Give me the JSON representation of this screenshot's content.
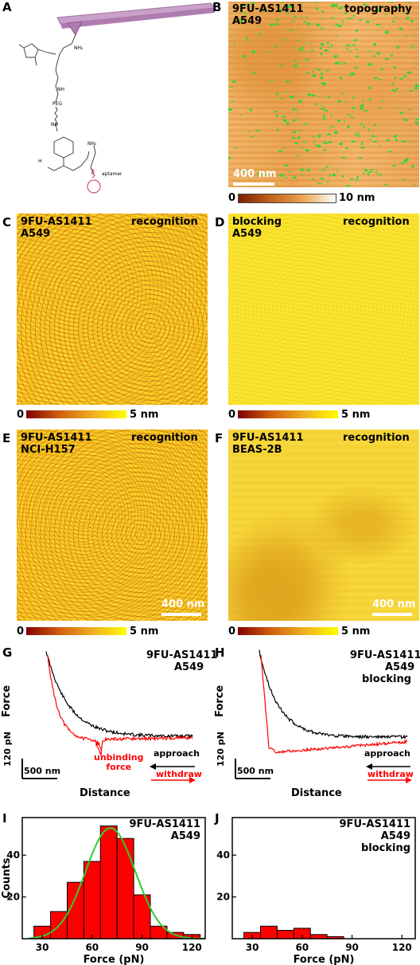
{
  "panelA": {
    "letter": "A",
    "labels": {
      "nh2_top": "NH₂",
      "nh": "NH",
      "peg": "PEG",
      "nh2": "NH",
      "h": "H",
      "nh2_link": "NH₂",
      "aptamer": "aptamer"
    }
  },
  "panelB": {
    "letter": "B",
    "title1": "9FU-AS1411",
    "title2": "A549",
    "mode": "topography",
    "scalebar": "400 nm",
    "cb_min": "0",
    "cb_max": "10 nm"
  },
  "panelC": {
    "letter": "C",
    "title1": "9FU-AS1411",
    "title2": "A549",
    "mode": "recognition",
    "cb_min": "0",
    "cb_max": "5 nm"
  },
  "panelD": {
    "letter": "D",
    "title1": "blocking",
    "title2": "A549",
    "mode": "recognition",
    "cb_min": "0",
    "cb_max": "5 nm"
  },
  "panelE": {
    "letter": "E",
    "title1": "9FU-AS1411",
    "title2": "NCI-H157",
    "mode": "recognition",
    "scalebar": "400 nm",
    "cb_min": "0",
    "cb_max": "5 nm"
  },
  "panelF": {
    "letter": "F",
    "title1": "9FU-AS1411",
    "title2": "BEAS-2B",
    "mode": "recognition",
    "scalebar": "400 nm",
    "cb_min": "0",
    "cb_max": "5 nm"
  },
  "panelG": {
    "letter": "G",
    "title1": "9FU-AS1411",
    "title2": "A549",
    "ylabel": "Force",
    "xlabel": "Distance",
    "force_scale": "120 pN",
    "dist_scale": "500 nm",
    "annotation": "unbinding\nforce",
    "approach": "approach",
    "withdraw": "withdraw"
  },
  "panelH": {
    "letter": "H",
    "title1": "9FU-AS1411",
    "title2": "A549",
    "title3": "blocking",
    "ylabel": "Force",
    "xlabel": "Distance",
    "force_scale": "120 pN",
    "dist_scale": "500 nm",
    "approach": "approach",
    "withdraw": "withdraw"
  },
  "colors": {
    "approach": "#000000",
    "withdraw": "#ff0000",
    "bar": "#ff0000",
    "gauss": "#33cc33"
  },
  "chart_data": [
    {
      "panel": "I",
      "type": "bar",
      "title": "9FU-AS1411\nA549",
      "xlabel": "Force (pN)",
      "ylabel": "Counts",
      "bin_edges": [
        25,
        35,
        45,
        55,
        65,
        75,
        85,
        95,
        105,
        115,
        125
      ],
      "values": [
        6,
        13,
        27,
        37,
        54,
        48,
        21,
        6,
        3,
        2
      ],
      "fit": {
        "type": "gaussian",
        "mean": 71,
        "sigma": 15,
        "amplitude": 53
      },
      "xticks": [
        30,
        60,
        90,
        120
      ],
      "yticks": [
        20,
        40
      ],
      "xlim": [
        18,
        128
      ],
      "ylim": [
        0,
        58
      ]
    },
    {
      "panel": "J",
      "type": "bar",
      "title": "9FU-AS1411\nA549\nblocking",
      "xlabel": "Force (pN)",
      "ylabel": "",
      "bin_edges": [
        25,
        35,
        45,
        55,
        65,
        75,
        85,
        95,
        105,
        115,
        125
      ],
      "values": [
        3,
        6,
        4,
        5,
        2,
        1,
        0,
        0,
        0,
        0
      ],
      "xticks": [
        30,
        60,
        90,
        120
      ],
      "yticks": [
        20,
        40
      ],
      "xlim": [
        18,
        128
      ],
      "ylim": [
        0,
        58
      ]
    }
  ]
}
